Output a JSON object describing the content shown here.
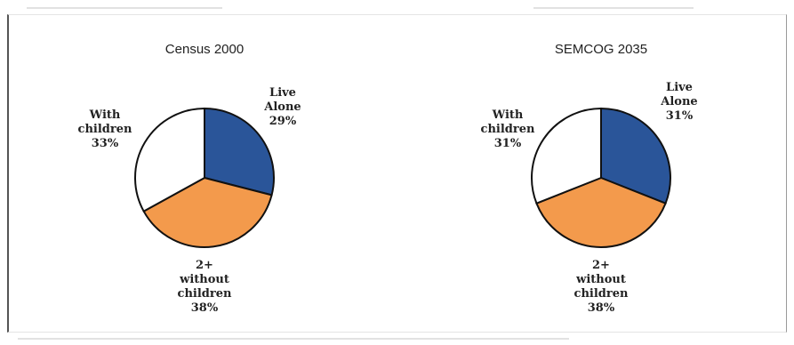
{
  "chart_data": [
    {
      "type": "pie",
      "title": "Census 2000",
      "slices": [
        {
          "label": [
            "Live",
            "Alone",
            "29%"
          ],
          "value": 29,
          "color": "#2a5599"
        },
        {
          "label": [
            "2+",
            "without",
            "children",
            "38%"
          ],
          "value": 38,
          "color": "#f39a4c"
        },
        {
          "label": [
            "With",
            "children",
            "33%"
          ],
          "value": 33,
          "color": "#ffffff"
        }
      ]
    },
    {
      "type": "pie",
      "title": "SEMCOG 2035",
      "slices": [
        {
          "label": [
            "Live",
            "Alone",
            "31%"
          ],
          "value": 31,
          "color": "#2a5599"
        },
        {
          "label": [
            "2+",
            "without",
            "children",
            "38%"
          ],
          "value": 38,
          "color": "#f39a4c"
        },
        {
          "label": [
            "With",
            "children",
            "31%"
          ],
          "value": 31,
          "color": "#ffffff"
        }
      ]
    }
  ]
}
